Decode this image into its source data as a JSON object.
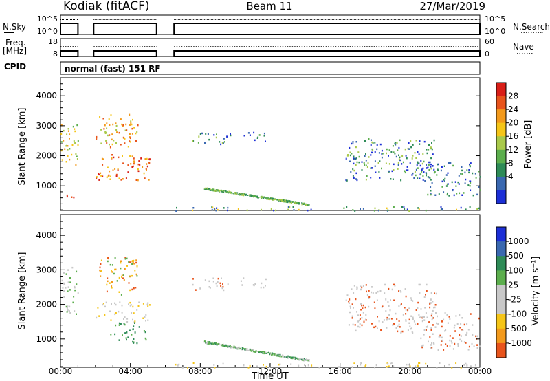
{
  "header": {
    "station": "Kodiak (fitACF)",
    "beam": "Beam 11",
    "date": "27/Mar/2019"
  },
  "top_panel": {
    "left_label": "N.Sky",
    "left_ticks": [
      "10^5",
      "10^0"
    ],
    "right_label": "N.Search",
    "right_ticks": [
      "10^5",
      "10^0"
    ]
  },
  "freq_panel": {
    "left_label_1": "Freq.",
    "left_label_2": "[MHz]",
    "left_ticks": [
      "18",
      "8"
    ],
    "right_label": "Nave",
    "right_ticks": [
      "60",
      "0"
    ]
  },
  "cpid": {
    "label": "CPID",
    "mode": "normal (fast) 151 RF"
  },
  "chart_data": [
    {
      "type": "heatmap",
      "title": "",
      "ylabel": "Slant Range [km]",
      "xlabel": "",
      "ylim": [
        180,
        4600
      ],
      "y_ticks": [
        "1000",
        "2000",
        "3000",
        "4000"
      ],
      "colorbar_label": "Power [dB]",
      "colorbar_ticks": [
        "4",
        "8",
        "12",
        "16",
        "20",
        "24",
        "28"
      ],
      "colors": [
        "#1c2fd6",
        "#3a68b0",
        "#2e8b57",
        "#5cae4d",
        "#a9c94a",
        "#f5c518",
        "#f39a1c",
        "#e8541c",
        "#d91e18"
      ],
      "scatter_regions": [
        {
          "t": [
            2.0,
            4.4
          ],
          "r": [
            2300,
            3400
          ],
          "c": [
            5,
            6,
            7,
            4
          ]
        },
        {
          "t": [
            2.0,
            5.1
          ],
          "r": [
            1200,
            2100
          ],
          "c": [
            5,
            6,
            7,
            8
          ]
        },
        {
          "t": [
            0.0,
            1.0
          ],
          "r": [
            1700,
            3100
          ],
          "c": [
            4,
            5,
            6,
            3
          ]
        },
        {
          "t": [
            0.1,
            0.9
          ],
          "r": [
            550,
            750
          ],
          "c": [
            8,
            7
          ]
        },
        {
          "t": [
            7.5,
            9.7
          ],
          "r": [
            2400,
            2800
          ],
          "c": [
            3,
            2,
            4,
            1,
            0
          ]
        },
        {
          "t": [
            10.3,
            11.8
          ],
          "r": [
            2500,
            2800
          ],
          "c": [
            3,
            2,
            1,
            0
          ]
        },
        {
          "t": [
            16.3,
            21.5
          ],
          "r": [
            1200,
            2600
          ],
          "c": [
            0,
            1,
            2,
            3,
            4
          ]
        },
        {
          "t": [
            20.5,
            24.0
          ],
          "r": [
            700,
            1800
          ],
          "c": [
            0,
            1,
            2,
            3
          ]
        },
        {
          "t": [
            6.5,
            24.0
          ],
          "r": [
            190,
            330
          ],
          "c": [
            0,
            1,
            2,
            3,
            4,
            5
          ]
        }
      ]
    },
    {
      "type": "heatmap",
      "title": "",
      "ylabel": "Slant Range [km]",
      "xlabel": "Time UT",
      "ylim": [
        180,
        4600
      ],
      "y_ticks": [
        "1000",
        "2000",
        "3000",
        "4000"
      ],
      "x_ticks": [
        "00:00",
        "04:00",
        "08:00",
        "12:00",
        "16:00",
        "20:00",
        "00:00"
      ],
      "colorbar_label": "Velocity [m s⁻¹]",
      "colorbar_ticks": [
        "1000",
        "500",
        "100",
        "25",
        "-25",
        "-100",
        "-500",
        "-1000"
      ],
      "colors": [
        "#1c2fd6",
        "#3a68b0",
        "#2e8b57",
        "#5cae4d",
        "#c8c8c8",
        "#c8c8c8",
        "#f5c518",
        "#f39a1c",
        "#e8541c",
        "#d91e18"
      ],
      "scatter_regions": [
        {
          "t": [
            2.0,
            4.4
          ],
          "r": [
            2300,
            3400
          ],
          "c": [
            6,
            7,
            8,
            3
          ]
        },
        {
          "t": [
            2.0,
            5.1
          ],
          "r": [
            1500,
            2100
          ],
          "c": [
            4,
            5,
            6
          ]
        },
        {
          "t": [
            2.8,
            4.9
          ],
          "r": [
            900,
            1500
          ],
          "c": [
            2,
            3,
            2,
            3
          ]
        },
        {
          "t": [
            0.0,
            1.0
          ],
          "r": [
            1700,
            3100
          ],
          "c": [
            4,
            3,
            5
          ]
        },
        {
          "t": [
            7.5,
            9.7
          ],
          "r": [
            2400,
            2800
          ],
          "c": [
            4,
            5,
            8
          ]
        },
        {
          "t": [
            10.3,
            11.8
          ],
          "r": [
            2500,
            2800
          ],
          "c": [
            4,
            5
          ]
        },
        {
          "t": [
            16.3,
            21.5
          ],
          "r": [
            1200,
            2600
          ],
          "c": [
            4,
            5,
            4,
            8
          ]
        },
        {
          "t": [
            20.5,
            24.0
          ],
          "r": [
            700,
            1800
          ],
          "c": [
            4,
            5,
            8
          ]
        },
        {
          "t": [
            6.5,
            24.0
          ],
          "r": [
            190,
            330
          ],
          "c": [
            6,
            4,
            5
          ]
        }
      ]
    }
  ]
}
